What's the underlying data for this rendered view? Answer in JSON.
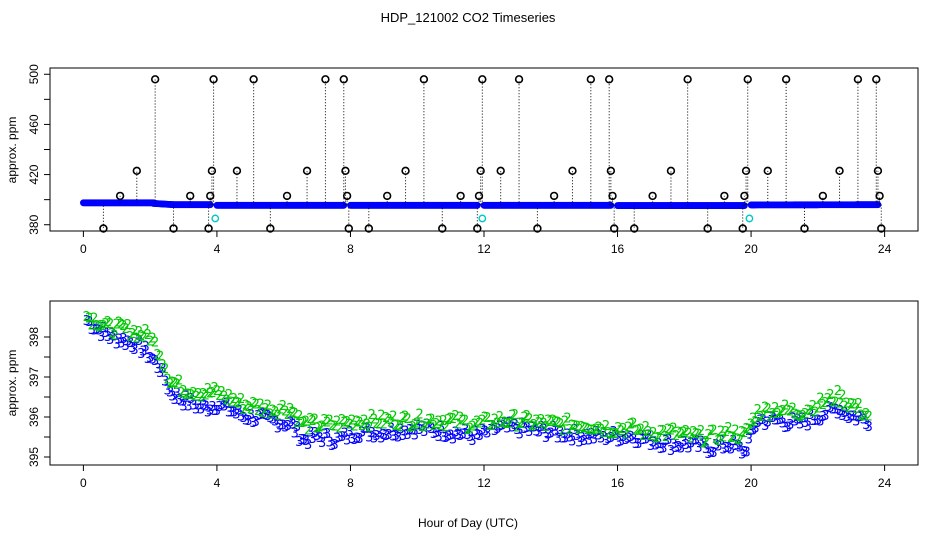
{
  "chart_data": [
    {
      "type": "scatter",
      "title": "HDP_121002  CO2 Timeseries",
      "xlabel": "",
      "ylabel": "approx. ppm",
      "xlim": [
        -1,
        25
      ],
      "ylim": [
        375,
        505
      ],
      "x_ticks": [
        0,
        4,
        8,
        12,
        16,
        20,
        24
      ],
      "x_tick_labels": [
        "0",
        "4",
        "8",
        "12",
        "16",
        "20",
        "24"
      ],
      "y_ticks": [
        380,
        420,
        460,
        500
      ],
      "y_tick_labels": [
        "380",
        "420",
        "460",
        "500"
      ],
      "colors": {
        "main": "#0000ff",
        "outlier": "#000000",
        "cal": "#00c8c8"
      },
      "baseline_segments": [
        {
          "x0": 0.0,
          "x1": 2.1,
          "y0": 397.5,
          "y1": 397.5
        },
        {
          "x0": 2.1,
          "x1": 2.7,
          "y0": 397,
          "y1": 396
        },
        {
          "x0": 2.7,
          "x1": 3.8,
          "y0": 396,
          "y1": 396
        },
        {
          "x0": 4.0,
          "x1": 7.8,
          "y0": 395.5,
          "y1": 395.5
        },
        {
          "x0": 8.0,
          "x1": 11.8,
          "y0": 395.5,
          "y1": 395.5
        },
        {
          "x0": 12.0,
          "x1": 15.8,
          "y0": 395.5,
          "y1": 395.5
        },
        {
          "x0": 16.0,
          "x1": 19.8,
          "y0": 395.3,
          "y1": 395.3
        },
        {
          "x0": 20.0,
          "x1": 23.8,
          "y0": 395.8,
          "y1": 396
        }
      ],
      "outliers": [
        {
          "x": 0.6,
          "y": 377
        },
        {
          "x": 1.1,
          "y": 403
        },
        {
          "x": 1.6,
          "y": 423
        },
        {
          "x": 2.15,
          "y": 496
        },
        {
          "x": 2.7,
          "y": 377
        },
        {
          "x": 3.2,
          "y": 403
        },
        {
          "x": 3.75,
          "y": 377
        },
        {
          "x": 3.8,
          "y": 403
        },
        {
          "x": 3.85,
          "y": 423
        },
        {
          "x": 3.9,
          "y": 496
        },
        {
          "x": 4.6,
          "y": 423
        },
        {
          "x": 5.1,
          "y": 496
        },
        {
          "x": 5.6,
          "y": 377
        },
        {
          "x": 6.1,
          "y": 403
        },
        {
          "x": 6.7,
          "y": 423
        },
        {
          "x": 7.25,
          "y": 496
        },
        {
          "x": 7.8,
          "y": 496
        },
        {
          "x": 7.85,
          "y": 423
        },
        {
          "x": 7.9,
          "y": 403
        },
        {
          "x": 7.95,
          "y": 377
        },
        {
          "x": 8.55,
          "y": 377
        },
        {
          "x": 9.1,
          "y": 403
        },
        {
          "x": 9.65,
          "y": 423
        },
        {
          "x": 10.2,
          "y": 496
        },
        {
          "x": 10.75,
          "y": 377
        },
        {
          "x": 11.3,
          "y": 403
        },
        {
          "x": 11.8,
          "y": 377
        },
        {
          "x": 11.85,
          "y": 403
        },
        {
          "x": 11.9,
          "y": 423
        },
        {
          "x": 11.95,
          "y": 496
        },
        {
          "x": 12.5,
          "y": 423
        },
        {
          "x": 13.05,
          "y": 496
        },
        {
          "x": 13.6,
          "y": 377
        },
        {
          "x": 14.1,
          "y": 403
        },
        {
          "x": 14.65,
          "y": 423
        },
        {
          "x": 15.2,
          "y": 496
        },
        {
          "x": 15.75,
          "y": 496
        },
        {
          "x": 15.8,
          "y": 423
        },
        {
          "x": 15.85,
          "y": 403
        },
        {
          "x": 15.9,
          "y": 377
        },
        {
          "x": 16.5,
          "y": 377
        },
        {
          "x": 17.05,
          "y": 403
        },
        {
          "x": 17.6,
          "y": 423
        },
        {
          "x": 18.1,
          "y": 496
        },
        {
          "x": 18.7,
          "y": 377
        },
        {
          "x": 19.2,
          "y": 403
        },
        {
          "x": 19.75,
          "y": 377
        },
        {
          "x": 19.8,
          "y": 403
        },
        {
          "x": 19.85,
          "y": 423
        },
        {
          "x": 19.9,
          "y": 496
        },
        {
          "x": 20.5,
          "y": 423
        },
        {
          "x": 21.05,
          "y": 496
        },
        {
          "x": 21.6,
          "y": 377
        },
        {
          "x": 22.15,
          "y": 403
        },
        {
          "x": 22.65,
          "y": 423
        },
        {
          "x": 23.2,
          "y": 496
        },
        {
          "x": 23.75,
          "y": 496
        },
        {
          "x": 23.8,
          "y": 423
        },
        {
          "x": 23.85,
          "y": 403
        },
        {
          "x": 23.9,
          "y": 377
        }
      ],
      "cal_points": [
        {
          "x": 3.95,
          "y": 385
        },
        {
          "x": 11.95,
          "y": 385
        },
        {
          "x": 19.95,
          "y": 385
        }
      ]
    },
    {
      "type": "scatter",
      "title": "",
      "xlabel": "Hour of Day (UTC)",
      "ylabel": "approx. ppm",
      "xlim": [
        -1,
        25
      ],
      "ylim": [
        394.8,
        398.9
      ],
      "x_ticks": [
        0,
        4,
        8,
        12,
        16,
        20,
        24
      ],
      "x_tick_labels": [
        "0",
        "4",
        "8",
        "12",
        "16",
        "20",
        "24"
      ],
      "y_ticks": [
        395,
        396,
        397,
        398
      ],
      "y_tick_labels": [
        "395",
        "396",
        "397",
        "398"
      ],
      "series": [
        {
          "name": "3",
          "color": "#0000ff",
          "points": [
            [
              0.1,
              398.4
            ],
            [
              0.4,
              398.2
            ],
            [
              0.8,
              398.0
            ],
            [
              1.2,
              397.9
            ],
            [
              1.6,
              397.8
            ],
            [
              2.0,
              397.5
            ],
            [
              2.3,
              397.2
            ],
            [
              2.6,
              396.6
            ],
            [
              3.0,
              396.4
            ],
            [
              3.6,
              396.2
            ],
            [
              4.0,
              396.3
            ],
            [
              4.8,
              396.0
            ],
            [
              5.6,
              395.9
            ],
            [
              6.2,
              395.8
            ],
            [
              6.6,
              395.4
            ],
            [
              7.0,
              395.5
            ],
            [
              7.6,
              395.4
            ],
            [
              8.2,
              395.6
            ],
            [
              9.0,
              395.6
            ],
            [
              10.0,
              395.7
            ],
            [
              11.0,
              395.6
            ],
            [
              11.8,
              395.5
            ],
            [
              12.4,
              395.7
            ],
            [
              13.0,
              395.7
            ],
            [
              14.0,
              395.6
            ],
            [
              15.0,
              395.5
            ],
            [
              15.8,
              395.5
            ],
            [
              16.4,
              395.5
            ],
            [
              17.0,
              395.4
            ],
            [
              17.6,
              395.3
            ],
            [
              18.2,
              395.3
            ],
            [
              18.8,
              395.2
            ],
            [
              19.4,
              395.3
            ],
            [
              19.8,
              395.1
            ],
            [
              20.2,
              395.9
            ],
            [
              20.8,
              395.9
            ],
            [
              21.4,
              395.8
            ],
            [
              22.0,
              396.0
            ],
            [
              22.6,
              396.2
            ],
            [
              23.0,
              396.0
            ],
            [
              23.6,
              395.9
            ]
          ]
        },
        {
          "name": "2",
          "color": "#00c800",
          "points": [
            [
              0.1,
              398.5
            ],
            [
              0.4,
              398.4
            ],
            [
              0.8,
              398.2
            ],
            [
              1.2,
              398.2
            ],
            [
              1.6,
              398.1
            ],
            [
              2.0,
              398.0
            ],
            [
              2.3,
              397.6
            ],
            [
              2.6,
              396.9
            ],
            [
              3.0,
              396.7
            ],
            [
              3.6,
              396.6
            ],
            [
              4.0,
              396.6
            ],
            [
              4.8,
              396.3
            ],
            [
              5.6,
              396.2
            ],
            [
              6.2,
              396.2
            ],
            [
              6.6,
              395.8
            ],
            [
              7.0,
              395.8
            ],
            [
              7.6,
              395.8
            ],
            [
              8.2,
              395.9
            ],
            [
              9.0,
              395.9
            ],
            [
              10.0,
              395.9
            ],
            [
              11.0,
              395.9
            ],
            [
              11.8,
              395.8
            ],
            [
              12.4,
              395.9
            ],
            [
              13.0,
              395.9
            ],
            [
              14.0,
              395.8
            ],
            [
              15.0,
              395.8
            ],
            [
              15.8,
              395.7
            ],
            [
              16.4,
              395.7
            ],
            [
              17.0,
              395.6
            ],
            [
              17.6,
              395.6
            ],
            [
              18.2,
              395.5
            ],
            [
              18.8,
              395.5
            ],
            [
              19.4,
              395.6
            ],
            [
              19.8,
              395.5
            ],
            [
              20.2,
              396.1
            ],
            [
              20.8,
              396.2
            ],
            [
              21.4,
              396.1
            ],
            [
              22.0,
              396.3
            ],
            [
              22.6,
              396.5
            ],
            [
              23.0,
              396.3
            ],
            [
              23.6,
              396.0
            ]
          ]
        }
      ]
    }
  ]
}
